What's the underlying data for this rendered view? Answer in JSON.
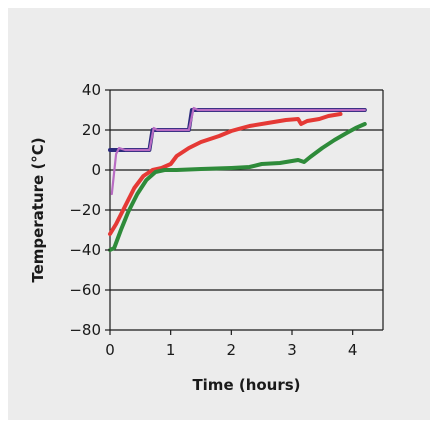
{
  "chart_data": {
    "type": "line",
    "title": "",
    "xlabel": "Time (hours)",
    "ylabel": "Temperature (°C)",
    "xlim": [
      0,
      4.5
    ],
    "ylim": [
      -80,
      40
    ],
    "xticks": [
      0,
      1,
      2,
      3,
      4
    ],
    "yticks": [
      40,
      20,
      0,
      -20,
      -40,
      -60,
      -80
    ],
    "ytick_labels": [
      "40",
      "20",
      "0",
      "−20",
      "−40",
      "−60",
      "−80"
    ],
    "grid": "horizontal",
    "legend": "none",
    "series": [
      {
        "color": "#2b2a7c",
        "points": [
          [
            0,
            10
          ],
          [
            0.65,
            10
          ],
          [
            0.7,
            20
          ],
          [
            1.3,
            20
          ],
          [
            1.35,
            30
          ],
          [
            4.2,
            30
          ]
        ]
      },
      {
        "color": "#b86cc3",
        "points": [
          [
            0.03,
            -12
          ],
          [
            0.1,
            8
          ],
          [
            0.15,
            11
          ],
          [
            0.25,
            10
          ],
          [
            0.65,
            10
          ],
          [
            0.72,
            21
          ],
          [
            0.78,
            20
          ],
          [
            1.3,
            20
          ],
          [
            1.38,
            31
          ],
          [
            1.45,
            30
          ],
          [
            4.2,
            30
          ]
        ]
      },
      {
        "color": "#e53935",
        "points": [
          [
            0,
            -32
          ],
          [
            0.1,
            -27
          ],
          [
            0.25,
            -18
          ],
          [
            0.4,
            -9
          ],
          [
            0.55,
            -3
          ],
          [
            0.7,
            0
          ],
          [
            0.85,
            1
          ],
          [
            1.0,
            3
          ],
          [
            1.1,
            7
          ],
          [
            1.3,
            11
          ],
          [
            1.5,
            14
          ],
          [
            1.8,
            17
          ],
          [
            2.0,
            19.5
          ],
          [
            2.3,
            22
          ],
          [
            2.6,
            23.5
          ],
          [
            2.9,
            25
          ],
          [
            3.1,
            25.5
          ],
          [
            3.15,
            23
          ],
          [
            3.25,
            24.5
          ],
          [
            3.45,
            25.5
          ],
          [
            3.6,
            27
          ],
          [
            3.8,
            28
          ]
        ]
      },
      {
        "color": "#2e8b3a",
        "points": [
          [
            0,
            -40
          ],
          [
            0.07,
            -39
          ],
          [
            0.18,
            -30
          ],
          [
            0.3,
            -21
          ],
          [
            0.45,
            -12
          ],
          [
            0.6,
            -5
          ],
          [
            0.75,
            -1
          ],
          [
            0.9,
            0
          ],
          [
            1.1,
            0
          ],
          [
            1.5,
            0.5
          ],
          [
            2.0,
            1
          ],
          [
            2.3,
            1.5
          ],
          [
            2.5,
            3
          ],
          [
            2.8,
            3.5
          ],
          [
            3.0,
            4.5
          ],
          [
            3.1,
            5
          ],
          [
            3.2,
            4
          ],
          [
            3.3,
            6.5
          ],
          [
            3.5,
            11
          ],
          [
            3.7,
            15
          ],
          [
            3.9,
            18.5
          ],
          [
            4.05,
            21
          ],
          [
            4.2,
            23
          ]
        ]
      }
    ]
  }
}
